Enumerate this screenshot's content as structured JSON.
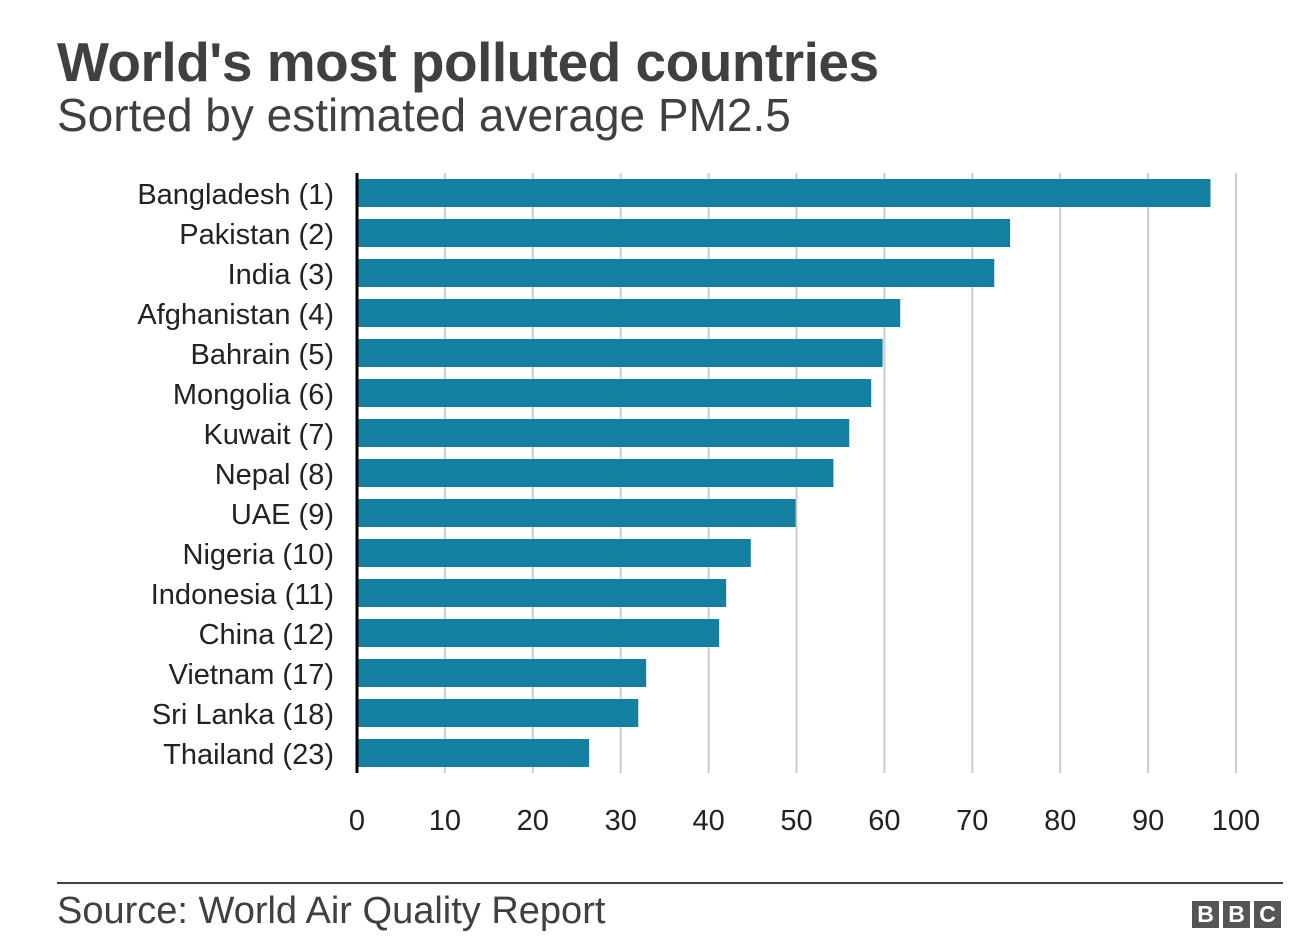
{
  "title": "World's most polluted countries",
  "subtitle": "Sorted by estimated average PM2.5",
  "source": "Source: World Air Quality Report",
  "logo": [
    "B",
    "B",
    "C"
  ],
  "colors": {
    "bar": "#1380a1",
    "text": "#404040",
    "grid": "#cccccc",
    "axis": "#000000"
  },
  "chart_data": {
    "type": "bar",
    "orientation": "horizontal",
    "title": "World's most polluted countries",
    "subtitle": "Sorted by estimated average PM2.5",
    "categories": [
      "Bangladesh (1)",
      "Pakistan (2)",
      "India (3)",
      "Afghanistan (4)",
      "Bahrain (5)",
      "Mongolia (6)",
      "Kuwait (7)",
      "Nepal (8)",
      "UAE (9)",
      "Nigeria (10)",
      "Indonesia (11)",
      "China (12)",
      "Vietnam (17)",
      "Sri Lanka (18)",
      "Thailand (23)"
    ],
    "values": [
      97.1,
      74.3,
      72.5,
      61.8,
      59.8,
      58.5,
      56.0,
      54.2,
      49.9,
      44.8,
      42.0,
      41.2,
      32.9,
      32.0,
      26.4
    ],
    "xlim": [
      0,
      100
    ],
    "xticks": [
      0,
      10,
      20,
      30,
      40,
      50,
      60,
      70,
      80,
      90,
      100
    ],
    "grid": true,
    "legend": "none"
  }
}
